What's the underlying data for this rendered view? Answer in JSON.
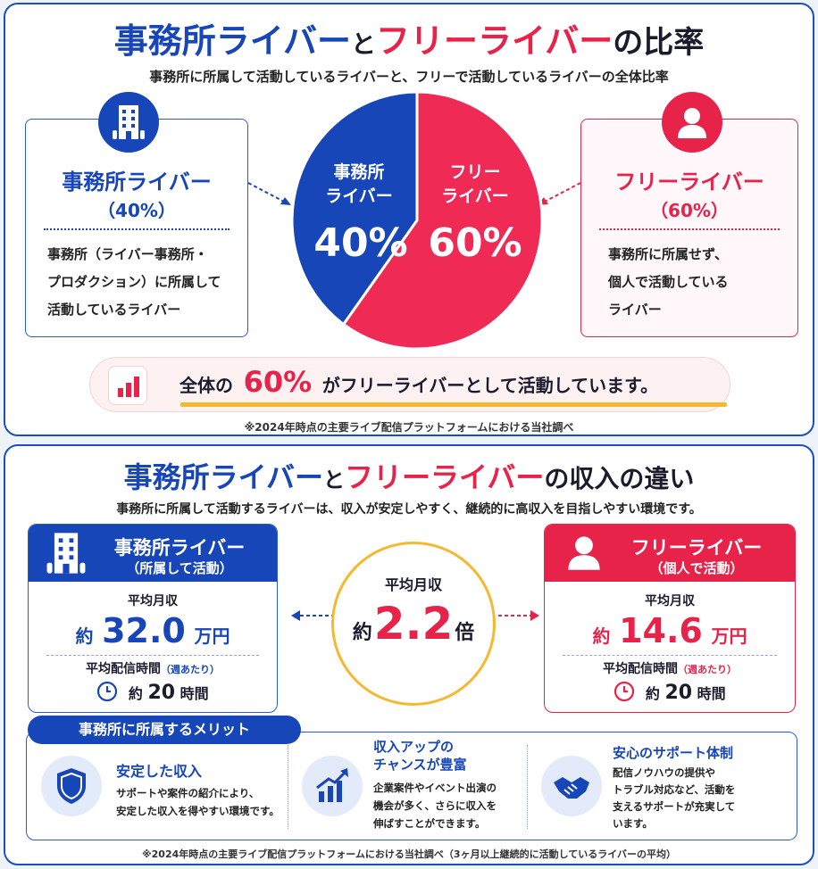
{
  "section1": {
    "title": {
      "part1": "事務所ライバー",
      "part2": "と",
      "part3": "フリーライバー",
      "part4": "の比率"
    },
    "subtitle": "事務所に所属して活動しているライバーと、フリーで活動しているライバーの全体比率",
    "office_card": {
      "title": "事務所ライバー",
      "percent": "（40%）",
      "desc": [
        "事務所（ライバー事務所・",
        "プロダクション）に所属して",
        "活動しているライバー"
      ],
      "icon": "building-icon"
    },
    "free_card": {
      "title": "フリーライバー",
      "percent": "（60%）",
      "desc": [
        "事務所に所属せず、",
        "個人で活動している",
        "ライバー"
      ],
      "icon": "person-icon"
    },
    "banner": {
      "prefix": "全体の",
      "value": "60%",
      "suffix": "がフリーライバーとして活動しています。",
      "icon": "bar-chart-icon"
    },
    "note": "※2024年時点の主要ライブ配信プラットフォームにおける当社調べ"
  },
  "chart_data": {
    "type": "pie",
    "slices": [
      {
        "label_line1": "事務所",
        "label_line2": "ライバー",
        "value": 40,
        "display": "40%",
        "color": "#1746b8"
      },
      {
        "label_line1": "フリー",
        "label_line2": "ライバー",
        "value": 60,
        "display": "60%",
        "color": "#ee2a55"
      }
    ]
  },
  "section2": {
    "title": {
      "part1": "事務所ライバー",
      "part2": "と",
      "part3": "フリーライバー",
      "part4": "の収入の違い"
    },
    "subtitle": "事務所に所属して活動するライバーは、収入が安定しやすく、継続的に高収入を目指しやすい環境です。",
    "office": {
      "title": "事務所ライバー",
      "sub": "（所属して活動）",
      "income_label": "平均月収",
      "income_prefix": "約",
      "income_value": "32.0",
      "income_unit": "万円",
      "time_label": "平均配信時間",
      "time_note": "（週あたり）",
      "time_prefix": "約",
      "time_value": "20",
      "time_unit": "時間"
    },
    "free": {
      "title": "フリーライバー",
      "sub": "（個人で活動）",
      "income_label": "平均月収",
      "income_prefix": "約",
      "income_value": "14.6",
      "income_unit": "万円",
      "time_label": "平均配信時間",
      "time_note": "（週あたり）",
      "time_prefix": "約",
      "time_value": "20",
      "time_unit": "時間"
    },
    "ratio": {
      "label": "平均月収",
      "prefix": "約",
      "value": "2.2",
      "unit": "倍"
    },
    "merits": {
      "tab": "事務所に所属するメリット",
      "items": [
        {
          "title": "安定した収入",
          "desc": [
            "サポートや案件の紹介により、",
            "安定した収入を得やすい環境です。"
          ],
          "icon": "shield-icon"
        },
        {
          "title_line1": "収入アップの",
          "title_line2": "チャンスが豊富",
          "desc": [
            "企業案件やイベント出演の",
            "機会が多く、さらに収入を",
            "伸ばすことができます。"
          ],
          "icon": "growth-chart-icon"
        },
        {
          "title": "安心のサポート体制",
          "desc": [
            "配信ノウハウの提供や",
            "トラブル対応など、活動を",
            "支えるサポートが充実して",
            "います。"
          ],
          "icon": "handshake-icon"
        }
      ]
    },
    "note": "※2024年時点の主要ライブ配信プラットフォームにおける当社調べ（3ヶ月以上継続的に活動しているライバーの平均）"
  }
}
